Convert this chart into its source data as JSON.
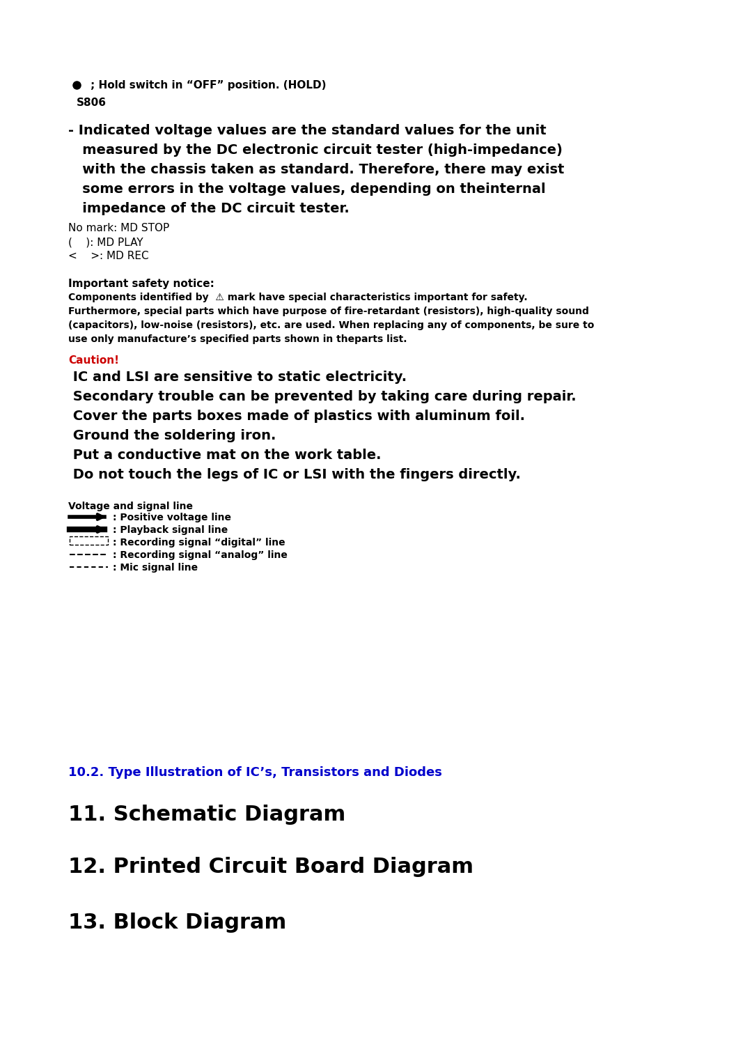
{
  "bg_color": "#ffffff",
  "bullet_line": "; Hold switch in “OFF” position. (HOLD)",
  "s806": "S806",
  "main_text_line1": "- Indicated voltage values are the standard values for the unit",
  "main_text_line2": "   measured by the DC electronic circuit tester (high-impedance)",
  "main_text_line3": "   with the chassis taken as standard. Therefore, there may exist",
  "main_text_line4": "   some errors in the voltage values, depending on theinternal",
  "main_text_line5": "   impedance of the DC circuit tester.",
  "no_mark": "No mark: MD STOP",
  "play_mark": "(    ): MD PLAY",
  "rec_mark": "<    >: MD REC",
  "safety_title": "Important safety notice:",
  "safety_line1": "Components identified by  ⚠ mark have special characteristics important for safety.",
  "safety_line2": "Furthermore, special parts which have purpose of fire-retardant (resistors), high-quality sound",
  "safety_line3": "(capacitors), low-noise (resistors), etc. are used. When replacing any of components, be sure to",
  "safety_line4": "use only manufacture’s specified parts shown in theparts list.",
  "caution_label": "Caution!",
  "caution_color": "#cc0000",
  "caution_lines": [
    " IC and LSI are sensitive to static electricity.",
    " Secondary trouble can be prevented by taking care during repair.",
    " Cover the parts boxes made of plastics with aluminum foil.",
    " Ground the soldering iron.",
    " Put a conductive mat on the work table.",
    " Do not touch the legs of IC or LSI with the fingers directly."
  ],
  "voltage_title": "Voltage and signal line",
  "voltage_lines": [
    ": Positive voltage line",
    ": Playback signal line",
    ": Recording signal “digital” line",
    ": Recording signal “analog” line",
    ": Mic signal line"
  ],
  "section_10_2": "10.2. Type Illustration of IC’s, Transistors and Diodes",
  "section_11": "11. Schematic Diagram",
  "section_12": "12. Printed Circuit Board Diagram",
  "section_13": "13. Block Diagram",
  "blue_color": "#0000cc",
  "black_color": "#000000"
}
